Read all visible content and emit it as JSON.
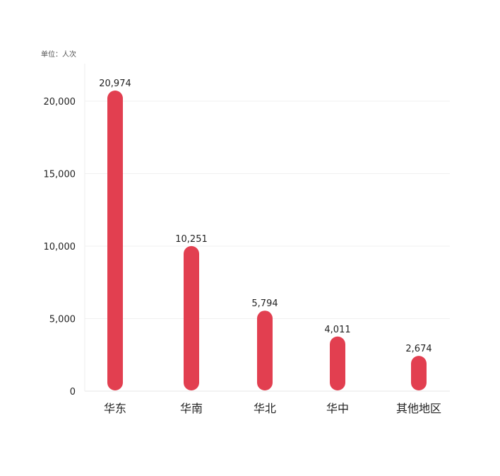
{
  "chart_data": {
    "type": "bar",
    "unit_label": "单位：人次",
    "categories": [
      "华东",
      "华南",
      "华北",
      "华中",
      "其他地区"
    ],
    "values": [
      20974,
      10251,
      5794,
      4011,
      2674
    ],
    "value_labels": [
      "20,974",
      "10,251",
      "5,794",
      "4,011",
      "2,674"
    ],
    "ylim": [
      0,
      20000
    ],
    "y_ticks": [
      0,
      5000,
      10000,
      15000,
      20000
    ],
    "y_tick_labels": [
      "0",
      "5,000",
      "10,000",
      "15,000",
      "20,000"
    ],
    "grid": true,
    "bar_color": "#e23f50",
    "bar_style": "rounded"
  }
}
